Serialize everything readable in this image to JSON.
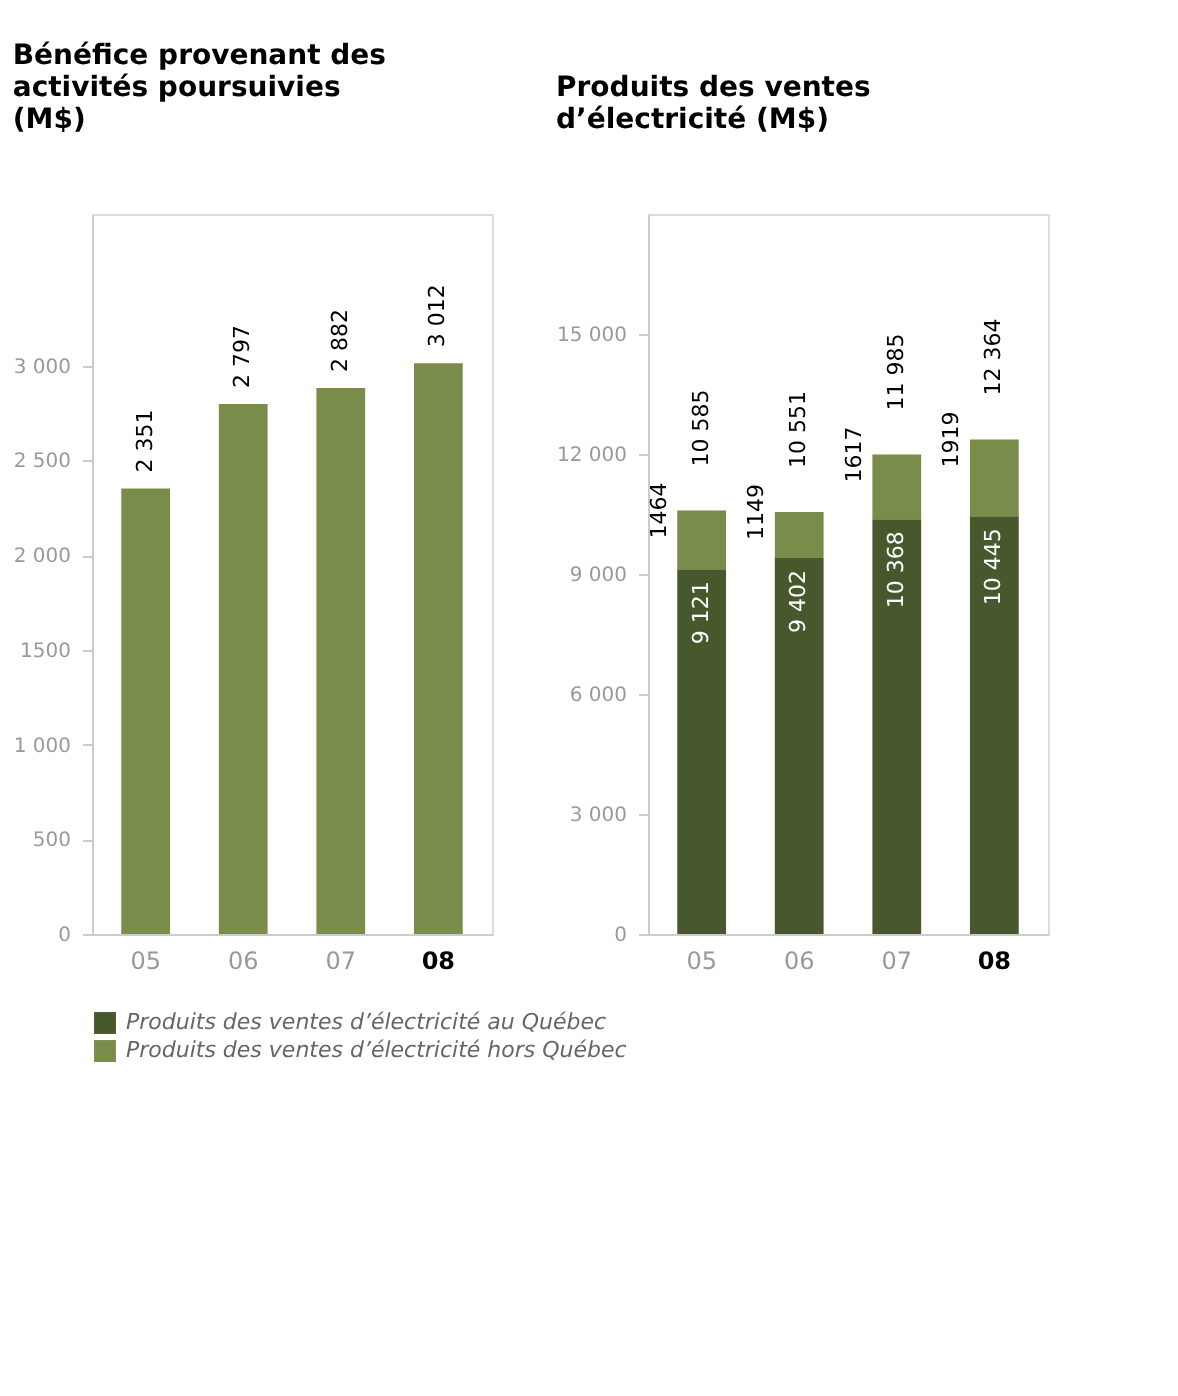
{
  "chart_data": [
    {
      "type": "bar",
      "title": "Bénéfice provenant des activités poursuivies  (M$)",
      "categories": [
        "05",
        "06",
        "07",
        "08"
      ],
      "values": [
        2351,
        2797,
        2882,
        3012
      ],
      "color": "#7a8c4a",
      "value_labels": [
        "2 351",
        "2 797",
        "2 882",
        "3 012"
      ],
      "ylim": [
        0,
        3800
      ],
      "yticks": [
        0,
        500,
        {
          "value": 1000,
          "label": "1 000"
        },
        1500,
        {
          "value": 2000,
          "label": "2 000"
        },
        {
          "value": 2500,
          "label": "2 500"
        },
        {
          "value": 3000,
          "label": "3 000"
        }
      ],
      "grid": false
    },
    {
      "type": "bar",
      "title": "Produits des ventes d’électricité  (M$)",
      "categories": [
        "05",
        "06",
        "07",
        "08"
      ],
      "stacked": true,
      "legend": "bottom",
      "series": [
        {
          "name": "Produits des ventes d’électricité au Québec",
          "color": "#48582d",
          "values": [
            9121,
            9402,
            10368,
            10445
          ],
          "value_labels": [
            "9 121",
            "9 402",
            "10 368",
            "10 445"
          ]
        },
        {
          "name": "Produits des ventes d’électricité hors Québec",
          "color": "#7a8c4a",
          "values": [
            1464,
            1149,
            1617,
            1919
          ],
          "value_labels": [
            "1464",
            "1149",
            "1617",
            "1919"
          ]
        }
      ],
      "totals": [
        "10 585",
        "10 551",
        "11 985",
        "12 364"
      ],
      "ylim": [
        0,
        18000
      ],
      "yticks": [
        0,
        {
          "value": 3000,
          "label": "3 000"
        },
        {
          "value": 6000,
          "label": "6 000"
        },
        {
          "value": 9000,
          "label": "9 000"
        },
        {
          "value": 12000,
          "label": "12 000"
        },
        {
          "value": 15000,
          "label": "15 000"
        }
      ],
      "grid": false
    }
  ]
}
